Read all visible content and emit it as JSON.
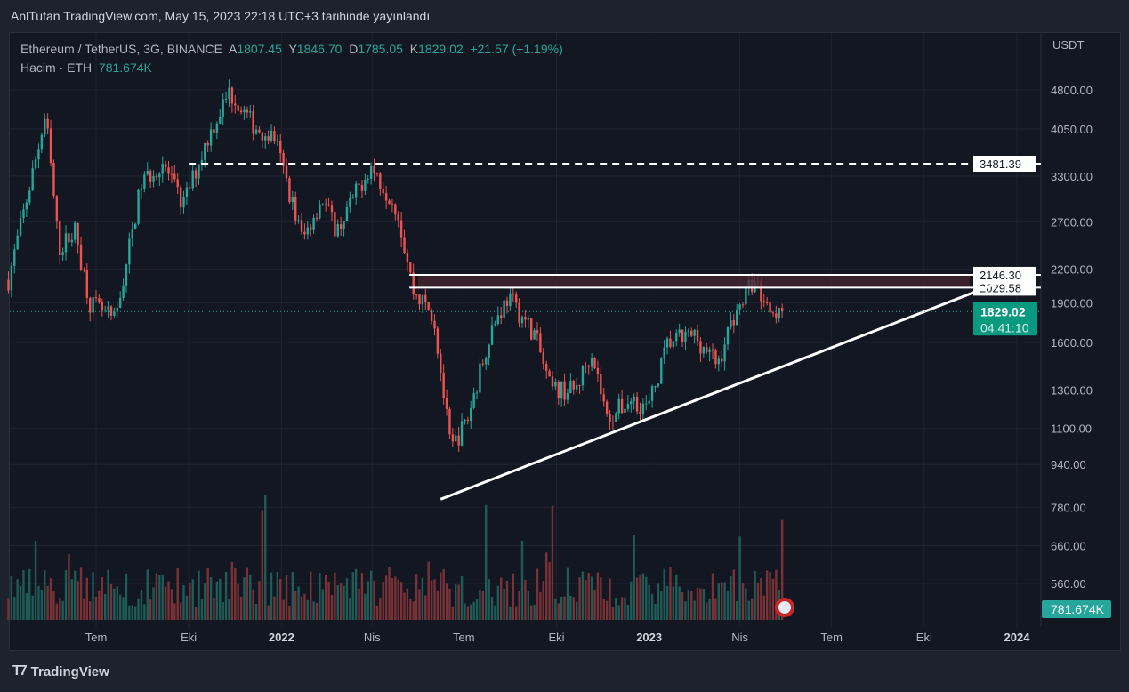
{
  "published": "AnlTufan TradingView.com, May 15, 2023 22:18 UTC+3 tarihinde yayınlandı",
  "legend": {
    "symbol": "Ethereum / TetherUS, 3G, BINANCE",
    "open_label": "A",
    "open": "1807.45",
    "high_label": "Y",
    "high": "1846.70",
    "low_label": "D",
    "low": "1785.05",
    "close_label": "K",
    "close": "1829.02",
    "change": "+21.57 (+1.19%)",
    "volume_label": "Hacim · ETH",
    "volume": "781.674K"
  },
  "footer": {
    "brand": "TradingView"
  },
  "colors": {
    "up": "#26a69a",
    "down": "#ef5350",
    "background": "#131722",
    "zone": "#4a2530"
  },
  "chart_data": {
    "type": "candlestick",
    "interval": "3 days",
    "scale": "log",
    "currency": "USDT",
    "ylim": [
      430,
      5200
    ],
    "y_ticks": [
      "4800.00",
      "4050.00",
      "3300.00",
      "2700.00",
      "2200.00",
      "1900.00",
      "1600.00",
      "1300.00",
      "1100.00",
      "940.00",
      "780.00",
      "660.00",
      "560.00"
    ],
    "x_ticks": [
      {
        "label": "Tem",
        "date": "2021-07-01"
      },
      {
        "label": "Eki",
        "date": "2021-10-01"
      },
      {
        "label": "2022",
        "date": "2022-01-01"
      },
      {
        "label": "Nis",
        "date": "2022-04-01"
      },
      {
        "label": "Tem",
        "date": "2022-07-01"
      },
      {
        "label": "Eki",
        "date": "2022-10-01"
      },
      {
        "label": "2023",
        "date": "2023-01-01"
      },
      {
        "label": "Nis",
        "date": "2023-04-01"
      },
      {
        "label": "Tem",
        "date": "2023-07-01"
      },
      {
        "label": "Eki",
        "date": "2023-10-01"
      },
      {
        "label": "2024",
        "date": "2024-01-01"
      }
    ],
    "price_path": [
      [
        "2021-04-05",
        2100
      ],
      [
        "2021-05-12",
        4300
      ],
      [
        "2021-05-25",
        2400
      ],
      [
        "2021-06-10",
        2600
      ],
      [
        "2021-06-25",
        1900
      ],
      [
        "2021-07-20",
        1750
      ],
      [
        "2021-08-15",
        3200
      ],
      [
        "2021-09-05",
        3500
      ],
      [
        "2021-09-25",
        2900
      ],
      [
        "2021-10-20",
        3900
      ],
      [
        "2021-11-10",
        4750
      ],
      [
        "2021-12-05",
        4100
      ],
      [
        "2021-12-25",
        3900
      ],
      [
        "2022-01-22",
        2500
      ],
      [
        "2022-02-10",
        3000
      ],
      [
        "2022-02-25",
        2600
      ],
      [
        "2022-03-30",
        3450
      ],
      [
        "2022-04-25",
        2900
      ],
      [
        "2022-05-12",
        2000
      ],
      [
        "2022-06-01",
        1800
      ],
      [
        "2022-06-18",
        1000
      ],
      [
        "2022-07-05",
        1150
      ],
      [
        "2022-07-28",
        1700
      ],
      [
        "2022-08-14",
        1950
      ],
      [
        "2022-09-10",
        1650
      ],
      [
        "2022-09-25",
        1300
      ],
      [
        "2022-10-20",
        1300
      ],
      [
        "2022-11-05",
        1550
      ],
      [
        "2022-11-20",
        1150
      ],
      [
        "2022-12-15",
        1250
      ],
      [
        "2022-12-31",
        1200
      ],
      [
        "2023-01-20",
        1600
      ],
      [
        "2023-02-15",
        1650
      ],
      [
        "2023-03-10",
        1450
      ],
      [
        "2023-03-25",
        1780
      ],
      [
        "2023-04-15",
        2100
      ],
      [
        "2023-04-28",
        1880
      ],
      [
        "2023-05-15",
        1829
      ]
    ],
    "current_price": "1829.02",
    "countdown": "04:41:10",
    "current_volume": "781.674K",
    "horizontal_levels": [
      {
        "price": "3481.39",
        "style": "dashed",
        "start": "2021-10-01"
      },
      {
        "price": "2146.30",
        "style": "solid",
        "start": "2022-05-08"
      },
      {
        "price": "2029.58",
        "style": "solid",
        "start": "2022-05-08"
      }
    ],
    "resistance_zone": {
      "from": 2029.58,
      "to": 2146.3
    },
    "trend_line": {
      "start": [
        "2022-06-08",
        808
      ],
      "end": [
        "2023-12-20",
        2095
      ]
    }
  }
}
